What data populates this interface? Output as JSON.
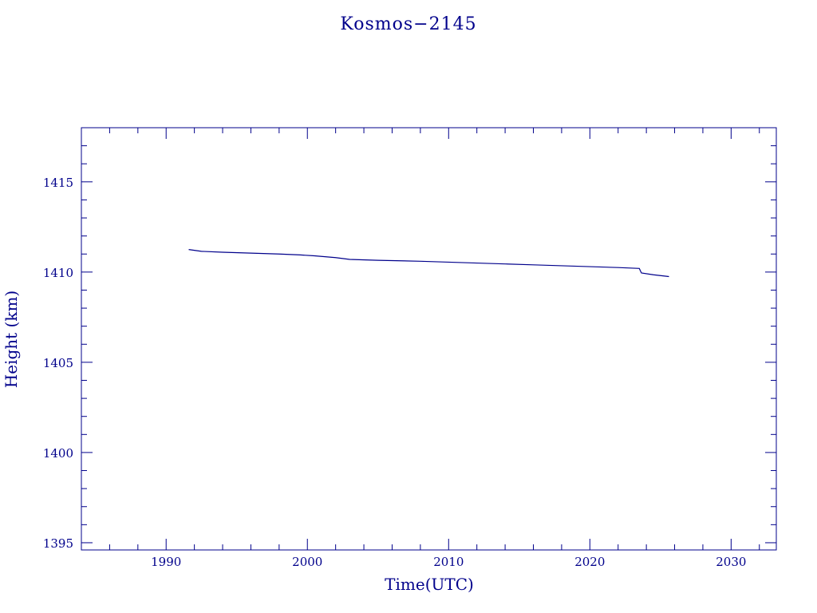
{
  "chart_data": {
    "type": "line",
    "title": "Kosmos−2145",
    "xlabel": "Time(UTC)",
    "ylabel": "Height (km)",
    "xlim": [
      1984,
      2033.2
    ],
    "ylim": [
      1394.6,
      1418
    ],
    "x_ticks": [
      1990,
      2000,
      2010,
      2020,
      2030
    ],
    "x_tick_labels": [
      "1990",
      "2000",
      "2010",
      "2020",
      "2030"
    ],
    "y_ticks": [
      1395,
      1400,
      1405,
      1410,
      1415
    ],
    "y_tick_labels": [
      "1395",
      "1400",
      "1405",
      "1410",
      "1415"
    ],
    "grid": false,
    "series": [
      {
        "color": "#00008b",
        "x": [
          1991.6,
          1992.5,
          1994.0,
          1996.0,
          1998.0,
          1999.5,
          2000.5,
          2002.0,
          2003.0,
          2005.0,
          2008.0,
          2010.0,
          2012.0,
          2014.0,
          2016.0,
          2018.0,
          2020.0,
          2022.0,
          2023.5,
          2023.65,
          2024.5,
          2025.6
        ],
        "y": [
          1411.25,
          1411.15,
          1411.1,
          1411.05,
          1411.0,
          1410.95,
          1410.9,
          1410.8,
          1410.7,
          1410.65,
          1410.6,
          1410.55,
          1410.5,
          1410.45,
          1410.4,
          1410.35,
          1410.3,
          1410.25,
          1410.2,
          1409.95,
          1409.85,
          1409.75
        ]
      }
    ]
  }
}
